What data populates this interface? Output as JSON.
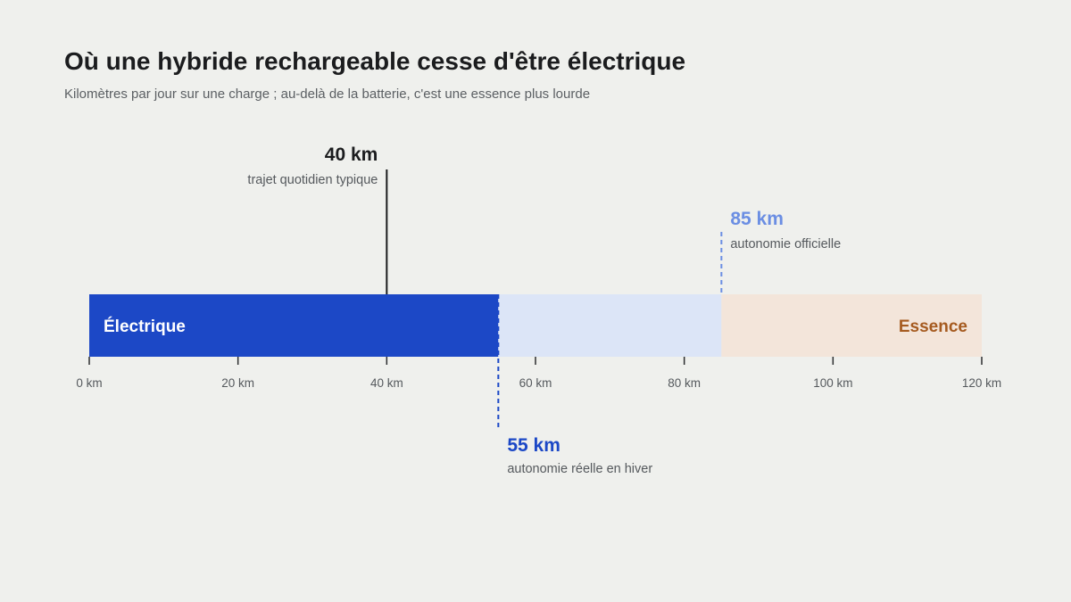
{
  "chart_data": {
    "type": "bar",
    "title": "Où une hybride rechargeable cesse d'être électrique",
    "subtitle": "Kilomètres par jour sur une charge ; au-delà de la batterie, c'est une essence plus lourde",
    "xlim": [
      0,
      120
    ],
    "ticks": [
      {
        "value": 0,
        "label": "0 km"
      },
      {
        "value": 20,
        "label": "20 km"
      },
      {
        "value": 40,
        "label": "40 km"
      },
      {
        "value": 60,
        "label": "60 km"
      },
      {
        "value": 80,
        "label": "80 km"
      },
      {
        "value": 100,
        "label": "100 km"
      },
      {
        "value": 120,
        "label": "120 km"
      }
    ],
    "segments": [
      {
        "name": "electric",
        "label": "Électrique",
        "start": 0,
        "end": 55,
        "color": "#1c48c6",
        "text_color": "#ffffff",
        "align": "left"
      },
      {
        "name": "official-range",
        "label": "",
        "start": 55,
        "end": 85,
        "color": "#dce5f7",
        "text_color": "#1c48c6",
        "align": "left"
      },
      {
        "name": "petrol",
        "label": "Essence",
        "start": 85,
        "end": 120,
        "color": "#f3e5da",
        "text_color": "#a55a1f",
        "align": "right"
      }
    ],
    "annotations": [
      {
        "name": "daily-commute",
        "value": 40,
        "label": "40 km",
        "description": "trajet quotidien typique",
        "position": "above",
        "align": "right",
        "style": "solid",
        "color": "#1b1c1e"
      },
      {
        "name": "official-range",
        "value": 85,
        "label": "85 km",
        "description": "autonomie officielle",
        "position": "above",
        "align": "left",
        "style": "dashed",
        "color": "#6b8ee3"
      },
      {
        "name": "winter-range",
        "value": 55,
        "label": "55 km",
        "description": "autonomie réelle en hiver",
        "position": "below",
        "align": "left",
        "style": "dashed",
        "color": "#1c48c6"
      }
    ],
    "grid": false,
    "legend": "none"
  }
}
